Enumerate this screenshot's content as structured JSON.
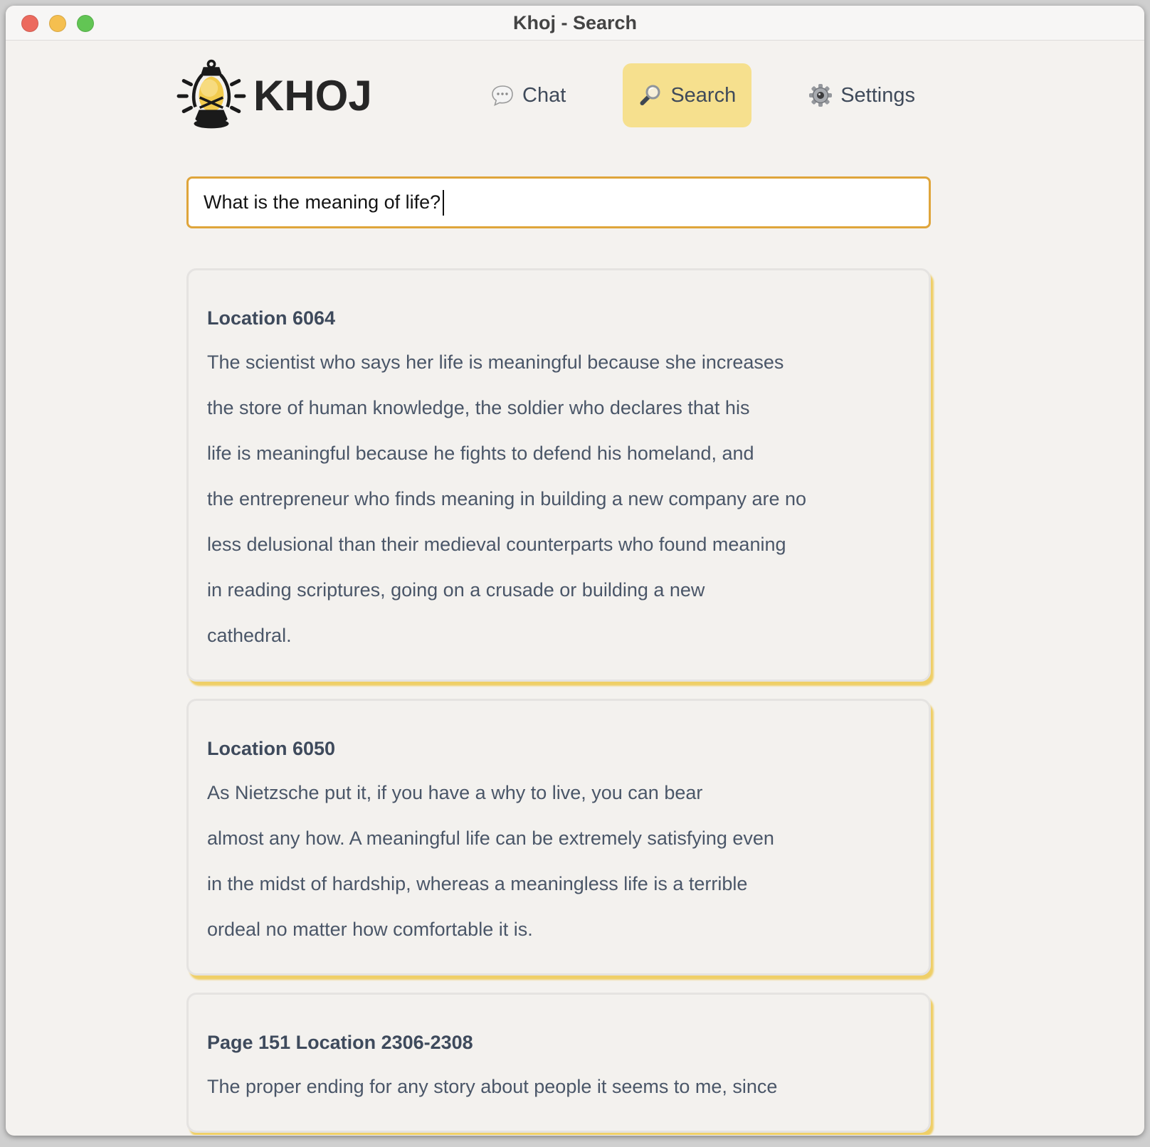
{
  "window": {
    "title": "Khoj - Search"
  },
  "titlebar_buttons": [
    {
      "name": "close",
      "color": "#ec6a5e"
    },
    {
      "name": "minimize",
      "color": "#f5bf4f"
    },
    {
      "name": "zoom",
      "color": "#62c554"
    }
  ],
  "header": {
    "logo_text": "KHOJ",
    "logo_icon": "lantern-icon",
    "nav": [
      {
        "id": "chat",
        "label": "Chat",
        "icon": "chat-bubble-icon",
        "active": false
      },
      {
        "id": "search",
        "label": "Search",
        "icon": "magnifier-icon",
        "active": true
      },
      {
        "id": "settings",
        "label": "Settings",
        "icon": "gear-icon",
        "active": false
      }
    ]
  },
  "search": {
    "value": "What is the meaning of life?"
  },
  "results": [
    {
      "title": "Location 6064",
      "lines": [
        "The scientist who says her life is meaningful because she increases",
        "the store of human knowledge, the soldier who declares that his",
        "life is meaningful because he fights to defend his homeland, and",
        "the entrepreneur who finds meaning in building a new company are no",
        "less delusional than their medieval counterparts who found meaning",
        "in reading scriptures, going on a crusade or building a new",
        "cathedral."
      ]
    },
    {
      "title": "Location 6050",
      "lines": [
        "As Nietzsche put it, if you have a why to live, you can bear",
        "almost any how. A meaningful life can be extremely satisfying even",
        "in the midst of hardship, whereas a meaningless life is a terrible",
        "ordeal no matter how comfortable it is."
      ]
    },
    {
      "title": "Page 151 Location 2306-2308",
      "lines": [
        "The proper ending for any story about people it seems to me, since"
      ]
    }
  ],
  "colors": {
    "accent_border": "#dfa53b",
    "active_tab_bg": "#f6e08e",
    "card_shadow": "#eecb58",
    "card_bg": "#f3f1ee",
    "page_bg": "#f4f2ef",
    "heading_text": "#3e4a5c",
    "body_text": "#4a5668"
  }
}
